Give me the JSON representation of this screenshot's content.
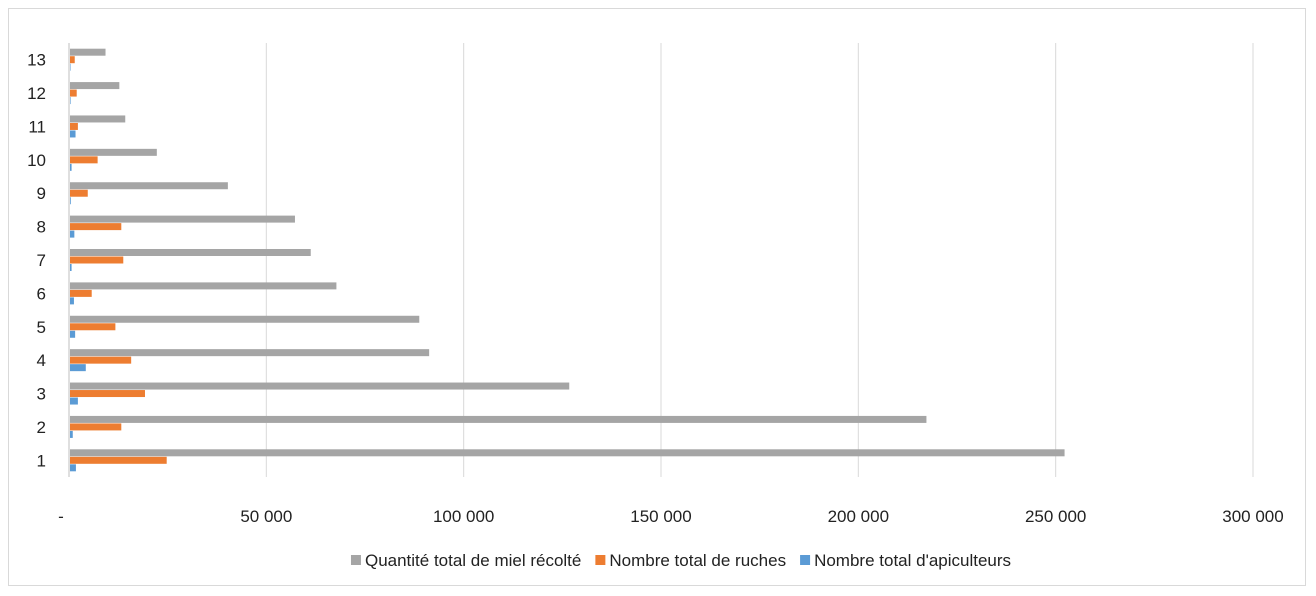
{
  "chart_data": {
    "type": "bar",
    "orientation": "horizontal",
    "categories": [
      "1",
      "2",
      "3",
      "4",
      "5",
      "6",
      "7",
      "8",
      "9",
      "10",
      "11",
      "12",
      "13"
    ],
    "series": [
      {
        "name": "Quantité total de miel récolté",
        "color": "#a5a5a5",
        "values": [
          252000,
          217000,
          126500,
          91000,
          88500,
          67500,
          61000,
          57000,
          40000,
          22000,
          14000,
          12500,
          9000
        ]
      },
      {
        "name": "Nombre total de ruches",
        "color": "#ed7d31",
        "values": [
          24500,
          13000,
          19000,
          15500,
          11500,
          5500,
          13500,
          13000,
          4500,
          7000,
          2000,
          1700,
          1200
        ]
      },
      {
        "name": "Nombre total d'apiculteurs",
        "color": "#5b9bd5",
        "values": [
          1500,
          700,
          2000,
          4000,
          1300,
          1000,
          400,
          1100,
          200,
          400,
          1400,
          150,
          100
        ]
      }
    ],
    "xlim": [
      0,
      300000
    ],
    "xticks": [
      0,
      50000,
      100000,
      150000,
      200000,
      250000,
      300000
    ],
    "xtick_labels": [
      "-",
      "50 000",
      "100 000",
      "150 000",
      "200 000",
      "250 000",
      "300 000"
    ],
    "grid": true,
    "legend_position": "bottom"
  }
}
